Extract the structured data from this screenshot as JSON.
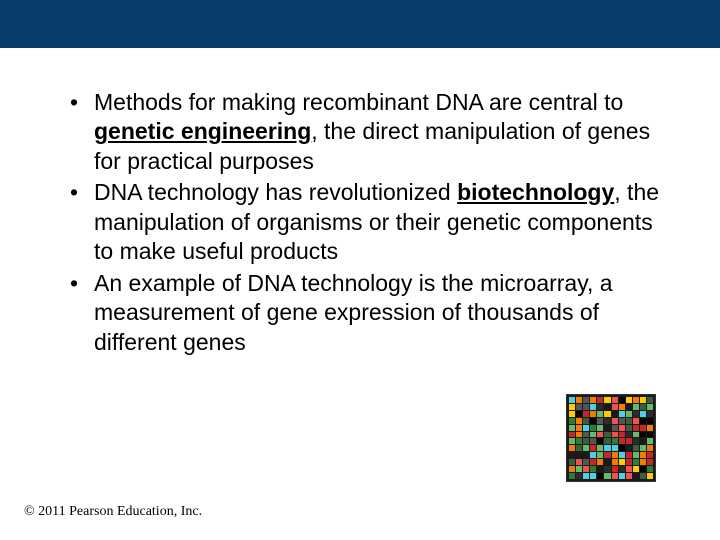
{
  "header": {
    "bar_color": "#0a3d6b"
  },
  "bullets": [
    {
      "pre": "Methods for making recombinant DNA are central to ",
      "bold": "genetic engineering",
      "post": ", the direct manipulation of genes for practical purposes"
    },
    {
      "pre": "DNA technology has revolutionized ",
      "bold": "biotechnology",
      "post": ", the manipulation of organisms or their genetic components to make useful products"
    },
    {
      "pre": "An example of DNA technology is the microarray, a measurement of gene expression of thousands of different genes",
      "bold": "",
      "post": ""
    }
  ],
  "microarray": {
    "grid": 12,
    "palette": [
      "#000000",
      "#1a1a1a",
      "#2b2b2b",
      "#3a5f3a",
      "#2e7d32",
      "#66bb6a",
      "#c62828",
      "#ef5350",
      "#ffcc00",
      "#f57c00",
      "#4dd0e1",
      "#555555"
    ]
  },
  "copyright": "© 2011 Pearson Education, Inc."
}
